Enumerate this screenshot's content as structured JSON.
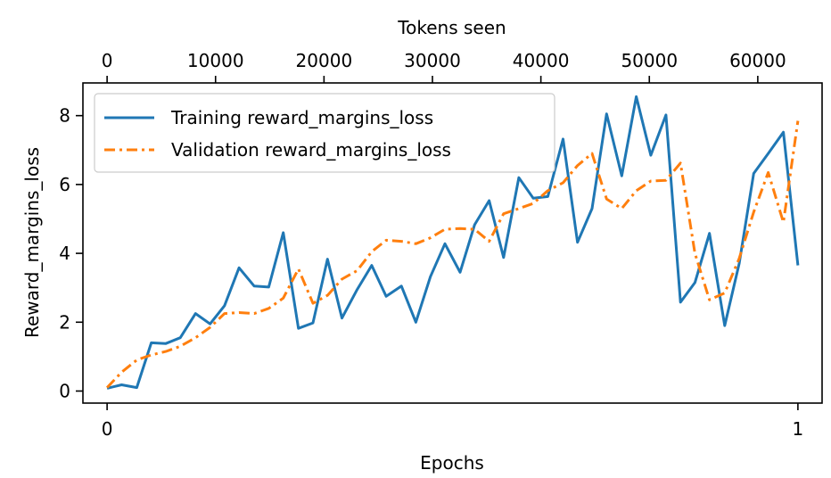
{
  "chart_data": {
    "type": "line",
    "xlabel": "Epochs",
    "ylabel": "Reward_margins_loss",
    "top_xlabel": "Tokens seen",
    "xlim": [
      -0.035,
      1.035
    ],
    "ylim": [
      -0.35,
      8.95
    ],
    "xticks": [
      0,
      1
    ],
    "xtick_labels": [
      "0",
      "1"
    ],
    "yticks": [
      0,
      2,
      4,
      6,
      8
    ],
    "ytick_labels": [
      "0",
      "2",
      "4",
      "6",
      "8"
    ],
    "top_xlim": [
      -2230,
      65930
    ],
    "top_xticks": [
      0,
      10000,
      20000,
      30000,
      40000,
      50000,
      60000
    ],
    "top_xtick_labels": [
      "0",
      "10000",
      "20000",
      "30000",
      "40000",
      "50000",
      "60000"
    ],
    "legend_position": "upper-left",
    "grid": false,
    "series": [
      {
        "name": "Training reward_margins_loss",
        "color": "#1f77b4",
        "style": "solid",
        "x": [
          0.0,
          0.021,
          0.043,
          0.064,
          0.085,
          0.106,
          0.128,
          0.149,
          0.17,
          0.191,
          0.213,
          0.234,
          0.255,
          0.277,
          0.298,
          0.319,
          0.34,
          0.362,
          0.383,
          0.404,
          0.426,
          0.447,
          0.468,
          0.489,
          0.511,
          0.532,
          0.553,
          0.574,
          0.596,
          0.617,
          0.638,
          0.66,
          0.681,
          0.702,
          0.723,
          0.745,
          0.766,
          0.787,
          0.809,
          0.83,
          0.851,
          0.872,
          0.894,
          0.915,
          0.936,
          0.957,
          0.979,
          1.0
        ],
        "y": [
          0.08,
          0.18,
          0.1,
          1.4,
          1.38,
          1.55,
          2.25,
          1.95,
          2.48,
          3.58,
          3.05,
          3.02,
          4.6,
          1.82,
          1.98,
          3.83,
          2.12,
          2.95,
          3.65,
          2.75,
          3.05,
          2.0,
          3.32,
          4.28,
          3.45,
          4.83,
          5.53,
          3.88,
          6.2,
          5.6,
          5.65,
          7.32,
          4.32,
          5.3,
          8.05,
          6.25,
          8.55,
          6.85,
          8.02,
          2.58,
          3.15,
          4.58,
          1.9,
          3.7,
          6.32,
          6.9,
          7.52,
          3.65
        ]
      },
      {
        "name": "Validation reward_margins_loss",
        "color": "#ff7f0e",
        "style": "dashdot",
        "x": [
          0.0,
          0.021,
          0.043,
          0.064,
          0.085,
          0.106,
          0.128,
          0.149,
          0.17,
          0.191,
          0.213,
          0.234,
          0.255,
          0.277,
          0.298,
          0.319,
          0.34,
          0.362,
          0.383,
          0.404,
          0.426,
          0.447,
          0.468,
          0.489,
          0.511,
          0.532,
          0.553,
          0.574,
          0.596,
          0.617,
          0.638,
          0.66,
          0.681,
          0.702,
          0.723,
          0.745,
          0.766,
          0.787,
          0.809,
          0.83,
          0.851,
          0.872,
          0.894,
          0.915,
          0.936,
          0.957,
          0.979,
          1.0
        ],
        "y": [
          0.1,
          0.55,
          0.9,
          1.05,
          1.15,
          1.3,
          1.55,
          1.85,
          2.25,
          2.28,
          2.25,
          2.4,
          2.7,
          3.55,
          2.55,
          2.78,
          3.25,
          3.5,
          4.05,
          4.38,
          4.35,
          4.28,
          4.45,
          4.7,
          4.72,
          4.7,
          4.35,
          5.15,
          5.3,
          5.45,
          5.82,
          6.05,
          6.55,
          6.9,
          5.58,
          5.3,
          5.82,
          6.1,
          6.12,
          6.62,
          4.0,
          2.65,
          2.85,
          3.85,
          5.2,
          6.35,
          4.9,
          7.85
        ]
      }
    ]
  }
}
